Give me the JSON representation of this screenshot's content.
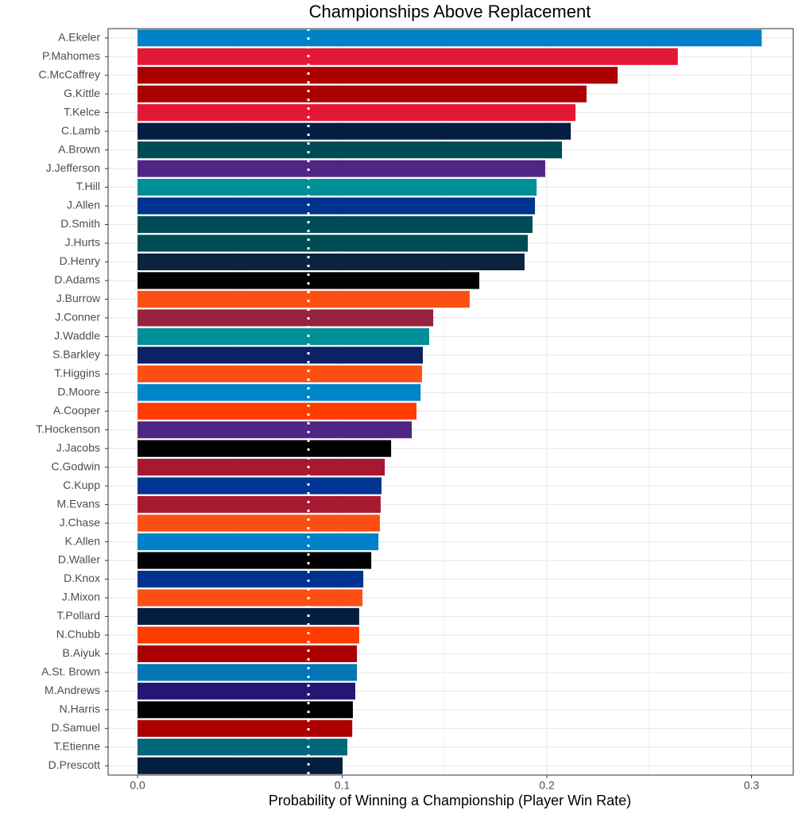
{
  "chart_data": {
    "type": "barh",
    "title": "Championships Above Replacement",
    "x_label": "Probability of Winning a Championship (Player Win Rate)",
    "categories": [
      "A.Ekeler",
      "P.Mahomes",
      "C.McCaffrey",
      "G.Kittle",
      "T.Kelce",
      "C.Lamb",
      "A.Brown",
      "J.Jefferson",
      "T.Hill",
      "J.Allen",
      "D.Smith",
      "J.Hurts",
      "D.Henry",
      "D.Adams",
      "J.Burrow",
      "J.Conner",
      "J.Waddle",
      "S.Barkley",
      "T.Higgins",
      "D.Moore",
      "A.Cooper",
      "T.Hockenson",
      "J.Jacobs",
      "C.Godwin",
      "C.Kupp",
      "M.Evans",
      "J.Chase",
      "K.Allen",
      "D.Waller",
      "D.Knox",
      "J.Mixon",
      "T.Pollard",
      "N.Chubb",
      "B.Aiyuk",
      "A.St. Brown",
      "M.Andrews",
      "N.Harris",
      "D.Samuel",
      "T.Etienne",
      "D.Prescott"
    ],
    "values": [
      0.305,
      0.264,
      0.2346,
      0.2194,
      0.214,
      0.2117,
      0.2074,
      0.1992,
      0.195,
      0.1942,
      0.193,
      0.1907,
      0.1891,
      0.167,
      0.1623,
      0.1445,
      0.1425,
      0.1394,
      0.139,
      0.1383,
      0.1363,
      0.134,
      0.1239,
      0.1208,
      0.1192,
      0.1188,
      0.1184,
      0.1177,
      0.1142,
      0.1103,
      0.1099,
      0.1083,
      0.1083,
      0.1072,
      0.1072,
      0.1064,
      0.1052,
      0.1049,
      0.1025,
      0.1002
    ],
    "colors": [
      "#0080C6",
      "#E31837",
      "#AA0000",
      "#AA0000",
      "#E31837",
      "#041E42",
      "#004C54",
      "#4F2683",
      "#008E97",
      "#00338D",
      "#004C54",
      "#004C54",
      "#0C2340",
      "#000000",
      "#FB4F14",
      "#97233F",
      "#008E97",
      "#0B2265",
      "#FB4F14",
      "#0085CA",
      "#FF3C00",
      "#4F2683",
      "#000000",
      "#A71930",
      "#003594",
      "#A71930",
      "#FB4F14",
      "#0080C6",
      "#000000",
      "#00338D",
      "#FB4F14",
      "#041E42",
      "#FF3C00",
      "#AA0000",
      "#0076B6",
      "#241773",
      "#000000",
      "#AA0000",
      "#006778",
      "#041E42"
    ],
    "xlim": [
      -0.0144,
      0.3204
    ],
    "xticks": [
      {
        "value": 0,
        "label": "0.0"
      },
      0.1,
      0.2,
      0.3
    ],
    "xminor": [
      0.05,
      0.15,
      0.25
    ],
    "reference_x": 0.0835,
    "grid": true
  }
}
